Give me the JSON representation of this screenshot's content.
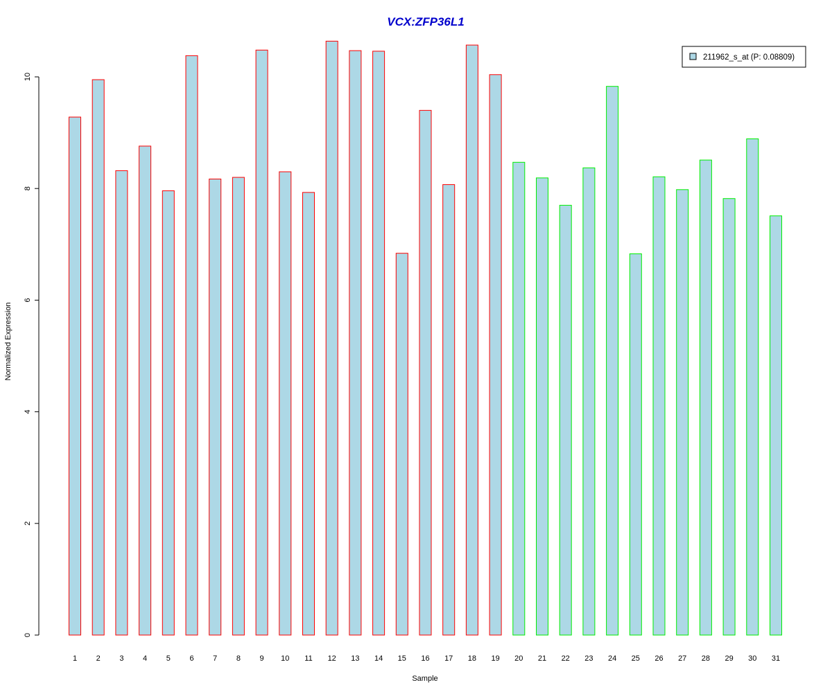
{
  "chart_data": {
    "type": "bar",
    "title": "VCX:ZFP36L1",
    "xlabel": "Sample",
    "ylabel": "Normalized Expression",
    "categories": [
      "1",
      "2",
      "3",
      "4",
      "5",
      "6",
      "7",
      "8",
      "9",
      "10",
      "11",
      "12",
      "13",
      "14",
      "15",
      "16",
      "17",
      "18",
      "19",
      "20",
      "21",
      "22",
      "23",
      "24",
      "25",
      "26",
      "27",
      "28",
      "29",
      "30",
      "31"
    ],
    "series": [
      {
        "name": "211962_s_at (P: 0.08809)",
        "fill_color": "#add8e6",
        "values": [
          9.28,
          9.95,
          8.32,
          8.76,
          7.96,
          10.38,
          8.17,
          8.2,
          10.48,
          8.3,
          7.93,
          10.64,
          10.47,
          10.46,
          6.84,
          9.4,
          8.07,
          10.57,
          10.04,
          8.47,
          8.19,
          7.7,
          8.37,
          9.83,
          6.83,
          8.21,
          7.98,
          8.51,
          7.82,
          8.89,
          7.51
        ]
      }
    ],
    "bar_border_colors": [
      "#ff0000",
      "#ff0000",
      "#ff0000",
      "#ff0000",
      "#ff0000",
      "#ff0000",
      "#ff0000",
      "#ff0000",
      "#ff0000",
      "#ff0000",
      "#ff0000",
      "#ff0000",
      "#ff0000",
      "#ff0000",
      "#ff0000",
      "#ff0000",
      "#ff0000",
      "#ff0000",
      "#ff0000",
      "#00ee00",
      "#00ee00",
      "#00ee00",
      "#00ee00",
      "#00ee00",
      "#00ee00",
      "#00ee00",
      "#00ee00",
      "#00ee00",
      "#00ee00",
      "#00ee00",
      "#00ee00"
    ],
    "yticks": [
      0,
      2,
      4,
      6,
      8,
      10
    ],
    "ylim": [
      0,
      10.64
    ],
    "grid": false,
    "legend_placement": "top-right",
    "title_color": "#0000cc"
  }
}
